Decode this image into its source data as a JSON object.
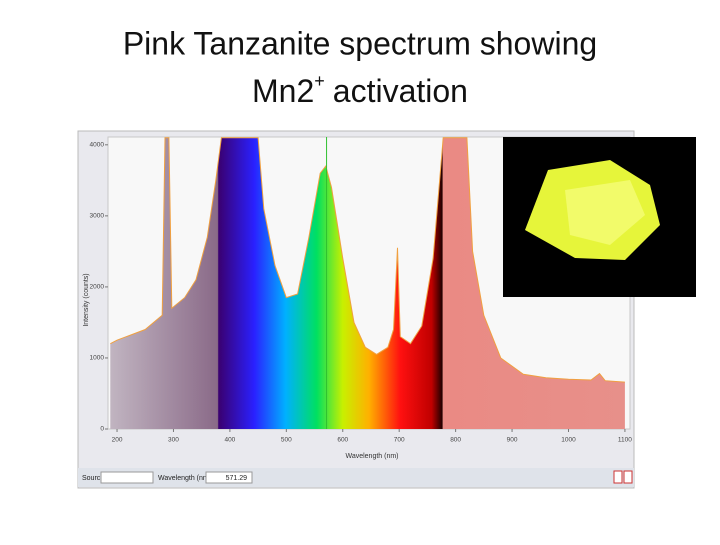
{
  "chart_data": {
    "type": "area",
    "title": [
      "Pink Tanzanite spectrum showing",
      "Mn2",
      "+",
      "activation"
    ],
    "x_label": "Wavelength (nm)",
    "y_label": "Intensity (counts)",
    "x": [
      188,
      200,
      250,
      280,
      285,
      292,
      297,
      320,
      340,
      360,
      375,
      385,
      450,
      460,
      480,
      500,
      520,
      540,
      560,
      570,
      580,
      600,
      620,
      640,
      660,
      680,
      690,
      697,
      702,
      720,
      740,
      760,
      778,
      820,
      830,
      850,
      880,
      920,
      960,
      1000,
      1040,
      1055,
      1065,
      1100
    ],
    "y": [
      1200,
      1250,
      1400,
      1600,
      4100,
      4100,
      1700,
      1850,
      2100,
      2700,
      3500,
      4100,
      4100,
      3100,
      2300,
      1850,
      1900,
      2700,
      3600,
      3700,
      3400,
      2400,
      1500,
      1150,
      1050,
      1150,
      1400,
      2550,
      1300,
      1200,
      1450,
      2400,
      4100,
      4100,
      2500,
      1600,
      1000,
      770,
      720,
      700,
      690,
      780,
      680,
      660
    ],
    "xlim": [
      184,
      1109
    ],
    "ylim": [
      0,
      4110
    ],
    "xticks": [
      200,
      300,
      400,
      500,
      600,
      700,
      800,
      900,
      1000,
      1100
    ],
    "yticks": [
      0,
      1000,
      2000,
      3000,
      4000
    ],
    "cursor": 571.29,
    "cursor_label": "571.29",
    "toolbar": [
      "Source:",
      "Wavelength (nm):"
    ]
  }
}
